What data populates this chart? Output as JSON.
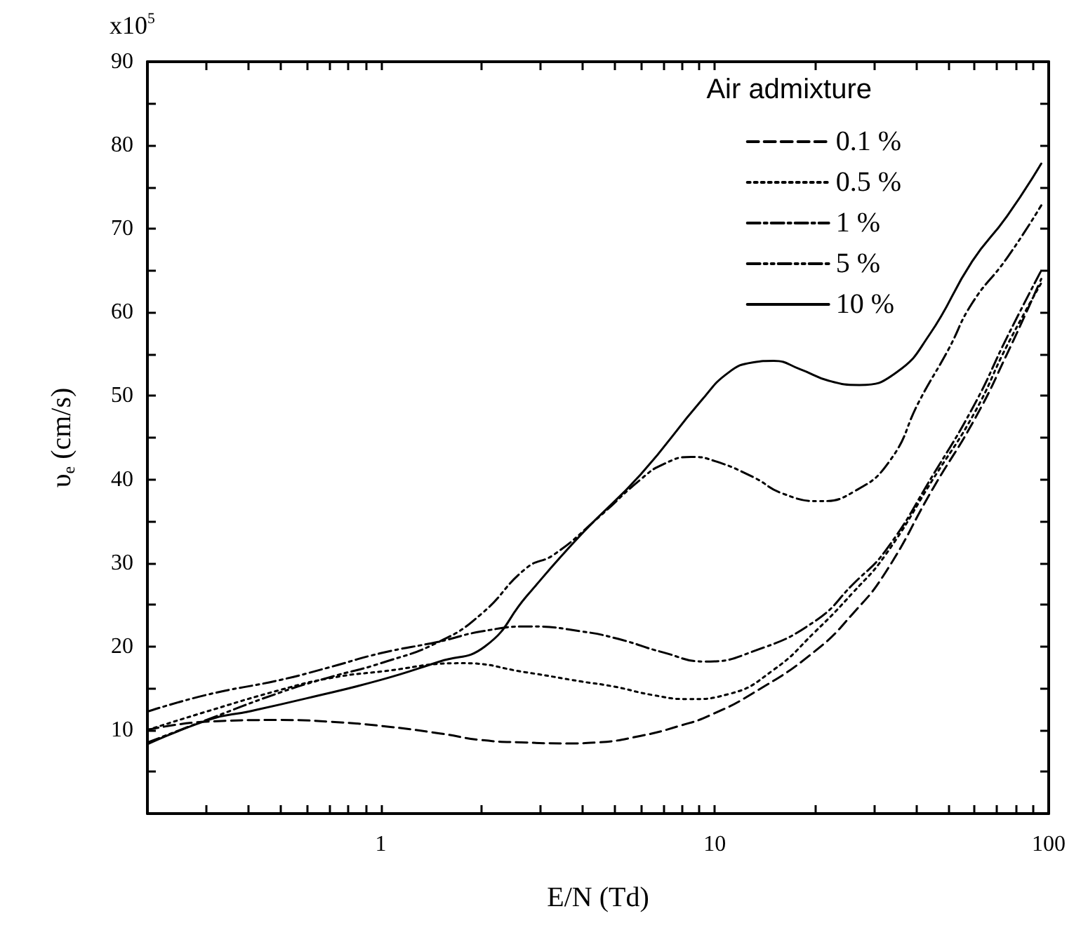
{
  "chart_data": {
    "type": "line",
    "xlabel": "E/N (Td)",
    "ylabel": "υ$_{e}$ (cm/s)",
    "legend_title": "Air admixture",
    "annotations": [
      "x10$^{5}$"
    ],
    "log": "x",
    "xlim": [
      0.2,
      100
    ],
    "ylim": [
      0,
      90
    ],
    "xticks": [
      {
        "value": 0.2,
        "label": null
      },
      {
        "value": 0.3,
        "label": null
      },
      {
        "value": 0.4,
        "label": null
      },
      {
        "value": 0.5,
        "label": null
      },
      {
        "value": 0.6,
        "label": null
      },
      {
        "value": 0.7,
        "label": null
      },
      {
        "value": 0.8,
        "label": null
      },
      {
        "value": 0.9,
        "label": null
      },
      1,
      {
        "value": 2,
        "label": null
      },
      {
        "value": 3,
        "label": null
      },
      {
        "value": 4,
        "label": null
      },
      {
        "value": 5,
        "label": null
      },
      {
        "value": 6,
        "label": null
      },
      {
        "value": 7,
        "label": null
      },
      {
        "value": 8,
        "label": null
      },
      {
        "value": 9,
        "label": null
      },
      10,
      {
        "value": 20,
        "label": null
      },
      {
        "value": 30,
        "label": null
      },
      {
        "value": 40,
        "label": null
      },
      {
        "value": 50,
        "label": null
      },
      {
        "value": 60,
        "label": null
      },
      {
        "value": 70,
        "label": null
      },
      {
        "value": 80,
        "label": null
      },
      {
        "value": 90,
        "label": null
      },
      100
    ],
    "yticks": [
      {
        "value": 5,
        "label": null
      },
      10,
      {
        "value": 15,
        "label": null
      },
      20,
      {
        "value": 25,
        "label": null
      },
      30,
      {
        "value": 35,
        "label": null
      },
      40,
      {
        "value": 45,
        "label": null
      },
      50,
      {
        "value": 55,
        "label": null
      },
      60,
      {
        "value": 65,
        "label": null
      },
      70,
      {
        "value": 75,
        "label": null
      },
      80,
      {
        "value": 85,
        "label": null
      },
      90
    ],
    "grid": false,
    "legend": "top right",
    "marker": "none",
    "series": [
      {
        "name": "0.1 %",
        "color": "#000000",
        "line_style": "dashed",
        "x": [
          0.2,
          0.3,
          0.5,
          0.7,
          1,
          1.5,
          2,
          2.73,
          3.7,
          4.4,
          6,
          8,
          9.6,
          13,
          19.9,
          26,
          32.5,
          45,
          60,
          75,
          95
        ],
        "values": [
          10,
          11,
          11.2,
          11,
          10.5,
          9.6,
          8.8,
          8.5,
          8.4,
          8.5,
          9.3,
          10.6,
          11.7,
          14.4,
          19.4,
          24,
          28.9,
          38.9,
          47.2,
          55,
          64
        ]
      },
      {
        "name": "0.5 %",
        "color": "#000000",
        "line_style": "dotted",
        "x": [
          0.2,
          0.3,
          0.5,
          0.7,
          1,
          1.75,
          2.73,
          4,
          5,
          6.5,
          8.3,
          11,
          15,
          19.9,
          26,
          32.5,
          45,
          60,
          75,
          95
        ],
        "values": [
          10,
          12.2,
          14.8,
          16.2,
          17,
          18,
          16.9,
          15.8,
          15.2,
          14.2,
          13.7,
          14.3,
          17.2,
          21.7,
          26.5,
          31,
          40,
          48,
          56,
          63.5
        ]
      },
      {
        "name": "1 %",
        "color": "#000000",
        "line_style": "dashdot",
        "x": [
          0.2,
          0.3,
          0.5,
          0.7,
          1,
          1.5,
          2,
          2.8,
          4,
          5.15,
          7,
          9.35,
          13,
          19.9,
          26,
          32.5,
          45,
          60,
          75,
          95
        ],
        "values": [
          12.2,
          14.2,
          16,
          17.5,
          19.2,
          20.6,
          21.8,
          22.4,
          21.8,
          20.9,
          19.3,
          18.2,
          19.4,
          23,
          27.5,
          31.5,
          40.5,
          49,
          57,
          65
        ]
      },
      {
        "name": "5 %",
        "color": "#000000",
        "line_style": "dashdotdot",
        "x": [
          0.2,
          0.3,
          0.5,
          0.7,
          1,
          1.5,
          2,
          2.73,
          3.3,
          4.5,
          6,
          7,
          8.5,
          10,
          13,
          16,
          20.6,
          26,
          33.4,
          41,
          50,
          59,
          75,
          95
        ],
        "values": [
          8.5,
          11.2,
          14.5,
          16.3,
          18,
          20.6,
          23.9,
          29.4,
          31,
          35.5,
          40,
          41.8,
          42.7,
          42.2,
          40.3,
          38.3,
          37.4,
          38.5,
          42.2,
          49.4,
          55.5,
          61.1,
          66.5,
          72.8
        ]
      },
      {
        "name": "10 %",
        "color": "#000000",
        "line_style": "solid",
        "x": [
          0.2,
          0.31,
          0.4,
          0.6,
          1,
          1.5,
          2.05,
          2.73,
          4,
          6,
          9.1,
          11,
          13,
          15,
          18,
          22,
          27.1,
          35,
          43.9,
          59,
          75,
          95
        ],
        "values": [
          8.3,
          11.3,
          12.2,
          13.8,
          16,
          18.2,
          20,
          26,
          33.5,
          40.6,
          49.4,
          52.8,
          54,
          54.2,
          53.2,
          51.8,
          51.3,
          52.8,
          57.3,
          66.1,
          71.5,
          77.8
        ]
      }
    ]
  }
}
